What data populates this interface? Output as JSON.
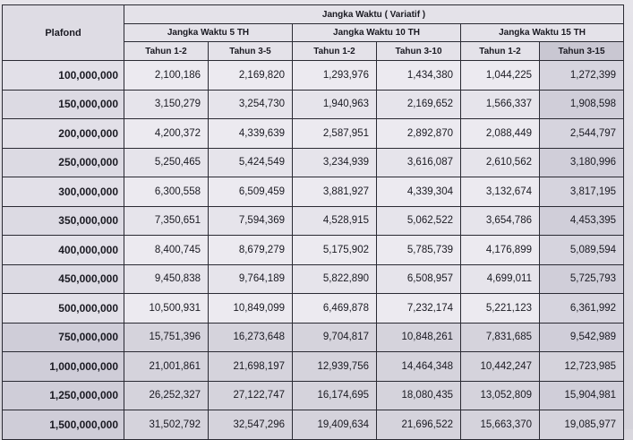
{
  "table": {
    "plafond_header": "Plafond",
    "group_header": "Jangka Waktu ( Variatif )",
    "terms": [
      {
        "label": "Jangka Waktu 5 TH",
        "columns": [
          "Tahun 1-2",
          "Tahun 3-5"
        ]
      },
      {
        "label": "Jangka Waktu 10 TH",
        "columns": [
          "Tahun 1-2",
          "Tahun 3-10"
        ]
      },
      {
        "label": "Jangka Waktu 15 TH",
        "columns": [
          "Tahun 1-2",
          "Tahun 3-15"
        ]
      }
    ],
    "rows": [
      {
        "plafond": "100,000,000",
        "values": [
          "2,100,186",
          "2,169,820",
          "1,293,976",
          "1,434,380",
          "1,044,225",
          "1,272,399"
        ]
      },
      {
        "plafond": "150,000,000",
        "values": [
          "3,150,279",
          "3,254,730",
          "1,940,963",
          "2,169,652",
          "1,566,337",
          "1,908,598"
        ]
      },
      {
        "plafond": "200,000,000",
        "values": [
          "4,200,372",
          "4,339,639",
          "2,587,951",
          "2,892,870",
          "2,088,449",
          "2,544,797"
        ]
      },
      {
        "plafond": "250,000,000",
        "values": [
          "5,250,465",
          "5,424,549",
          "3,234,939",
          "3,616,087",
          "2,610,562",
          "3,180,996"
        ]
      },
      {
        "plafond": "300,000,000",
        "values": [
          "6,300,558",
          "6,509,459",
          "3,881,927",
          "4,339,304",
          "3,132,674",
          "3,817,195"
        ]
      },
      {
        "plafond": "350,000,000",
        "values": [
          "7,350,651",
          "7,594,369",
          "4,528,915",
          "5,062,522",
          "3,654,786",
          "4,453,395"
        ]
      },
      {
        "plafond": "400,000,000",
        "values": [
          "8,400,745",
          "8,679,279",
          "5,175,902",
          "5,785,739",
          "4,176,899",
          "5,089,594"
        ]
      },
      {
        "plafond": "450,000,000",
        "values": [
          "9,450,838",
          "9,764,189",
          "5,822,890",
          "6,508,957",
          "4,699,011",
          "5,725,793"
        ]
      },
      {
        "plafond": "500,000,000",
        "values": [
          "10,500,931",
          "10,849,099",
          "6,469,878",
          "7,232,174",
          "5,221,123",
          "6,361,992"
        ]
      },
      {
        "plafond": "750,000,000",
        "values": [
          "15,751,396",
          "16,273,648",
          "9,704,817",
          "10,848,261",
          "7,831,685",
          "9,542,989"
        ]
      },
      {
        "plafond": "1,000,000,000",
        "values": [
          "21,001,861",
          "21,698,197",
          "12,939,756",
          "14,464,348",
          "10,442,247",
          "12,723,985"
        ]
      },
      {
        "plafond": "1,250,000,000",
        "values": [
          "26,252,327",
          "27,122,747",
          "16,174,695",
          "18,080,435",
          "13,052,809",
          "15,904,981"
        ]
      },
      {
        "plafond": "1,500,000,000",
        "values": [
          "31,502,792",
          "32,547,296",
          "19,409,634",
          "21,696,522",
          "15,663,370",
          "19,085,977"
        ]
      }
    ]
  }
}
